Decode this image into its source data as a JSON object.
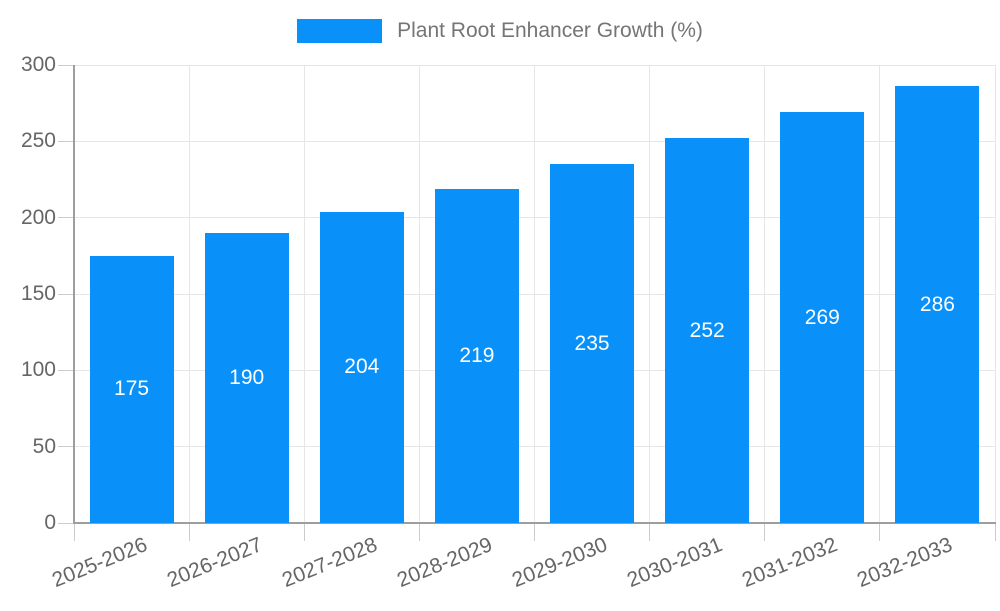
{
  "chart_data": {
    "type": "bar",
    "title": "Plant Root Enhancer Growth (%)",
    "categories": [
      "2025-2026",
      "2026-2027",
      "2027-2028",
      "2028-2029",
      "2029-2030",
      "2030-2031",
      "2031-2032",
      "2032-2033"
    ],
    "values": [
      175,
      190,
      204,
      219,
      235,
      252,
      269,
      286
    ],
    "xlabel": "",
    "ylabel": "",
    "ylim": [
      0,
      300
    ],
    "ytick_step": 50,
    "yticks": [
      0,
      50,
      100,
      150,
      200,
      250,
      300
    ],
    "grid": true,
    "legend_position": "top",
    "colors": {
      "bar": "#0991f9",
      "value_label": "#ffffff",
      "axis_text": "#666666",
      "legend_text": "#757575",
      "gridline": "#e6e6e6",
      "tick": "#cccccc",
      "axis_line": "#9e9e9e"
    }
  }
}
